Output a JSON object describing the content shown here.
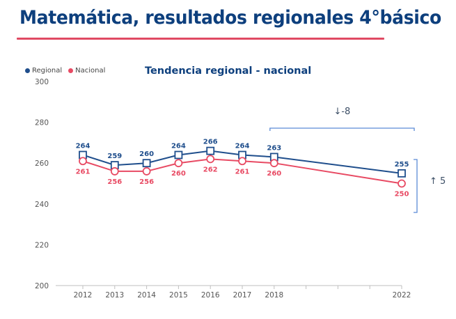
{
  "page": {
    "title": "Matemática, resultados regionales 4°básico"
  },
  "colors": {
    "title": "#0d3f7d",
    "underline": "#e04a63",
    "regional": "#1f4e8c",
    "nacional": "#e84a63",
    "bracket": "#5b8ad6",
    "axis": "#bfbfbf"
  },
  "chart_data": {
    "type": "line",
    "title": "Tendencia regional - nacional",
    "xlabel": "",
    "ylabel": "",
    "ylim": [
      200,
      300
    ],
    "yticks": [
      200,
      220,
      240,
      260,
      280,
      300
    ],
    "xlim": [
      2011,
      2022
    ],
    "x": [
      2012,
      2013,
      2014,
      2015,
      2016,
      2017,
      2018,
      2022
    ],
    "x_tick_positions": [
      2012,
      2013,
      2014,
      2015,
      2016,
      2017,
      2018,
      2019,
      2020,
      2021,
      2022
    ],
    "x_tick_labels": [
      "2012",
      "2013",
      "2014",
      "2015",
      "2016",
      "2017",
      "2018",
      "",
      "",
      "",
      "2022"
    ],
    "grid": false,
    "legend": {
      "position": "top-left",
      "entries": [
        "Regional",
        "Nacional"
      ]
    },
    "series": [
      {
        "name": "Regional",
        "marker": "square",
        "values": [
          264,
          259,
          260,
          264,
          266,
          264,
          263,
          255
        ]
      },
      {
        "name": "Nacional",
        "marker": "circle",
        "values": [
          261,
          256,
          256,
          260,
          262,
          261,
          260,
          250
        ]
      }
    ],
    "annotations": [
      {
        "type": "bracket-horizontal",
        "from_x": 2018,
        "to_x": 2022,
        "text": "↓-8",
        "meaning": "Regional change 2018→2022"
      },
      {
        "type": "bracket-vertical",
        "x": 2022,
        "text": "↑ 5",
        "meaning": "Regional above Nacional in 2022"
      }
    ]
  }
}
